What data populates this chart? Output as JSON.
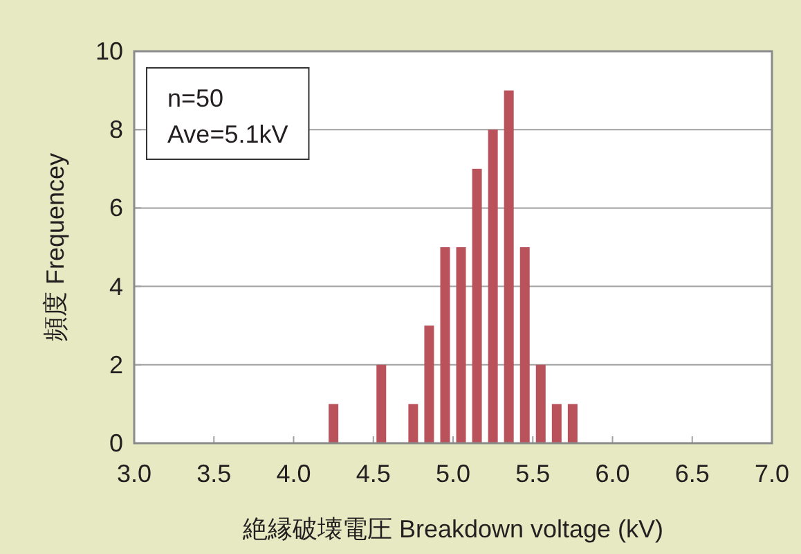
{
  "chart_data": {
    "type": "bar",
    "xlabel": "絶縁破壊電圧 Breakdown voltage (kV)",
    "ylabel": "頻度 Frequencey",
    "annotations": [
      "n=50",
      "Ave=5.1kV"
    ],
    "x": [
      4.25,
      4.55,
      4.75,
      4.85,
      4.95,
      5.05,
      5.15,
      5.25,
      5.35,
      5.45,
      5.55,
      5.65,
      5.75
    ],
    "values": [
      1,
      2,
      1,
      3,
      5,
      5,
      7,
      8,
      9,
      5,
      2,
      1,
      1
    ],
    "color": "#b9525a",
    "xlim": [
      3,
      7
    ],
    "xticks": [
      {
        "value": 3,
        "label": "3.0"
      },
      {
        "value": 3.5,
        "label": "3.5"
      },
      {
        "value": 4,
        "label": "4.0"
      },
      {
        "value": 4.5,
        "label": "4.5"
      },
      {
        "value": 5,
        "label": "5.0"
      },
      {
        "value": 5.5,
        "label": "5.5"
      },
      {
        "value": 6,
        "label": "6.0"
      },
      {
        "value": 6.5,
        "label": "6.5"
      },
      {
        "value": 7,
        "label": "7.0"
      }
    ],
    "ylim": [
      0,
      10
    ],
    "yticks": [
      0,
      2,
      4,
      6,
      8,
      10
    ],
    "grid": "y"
  }
}
